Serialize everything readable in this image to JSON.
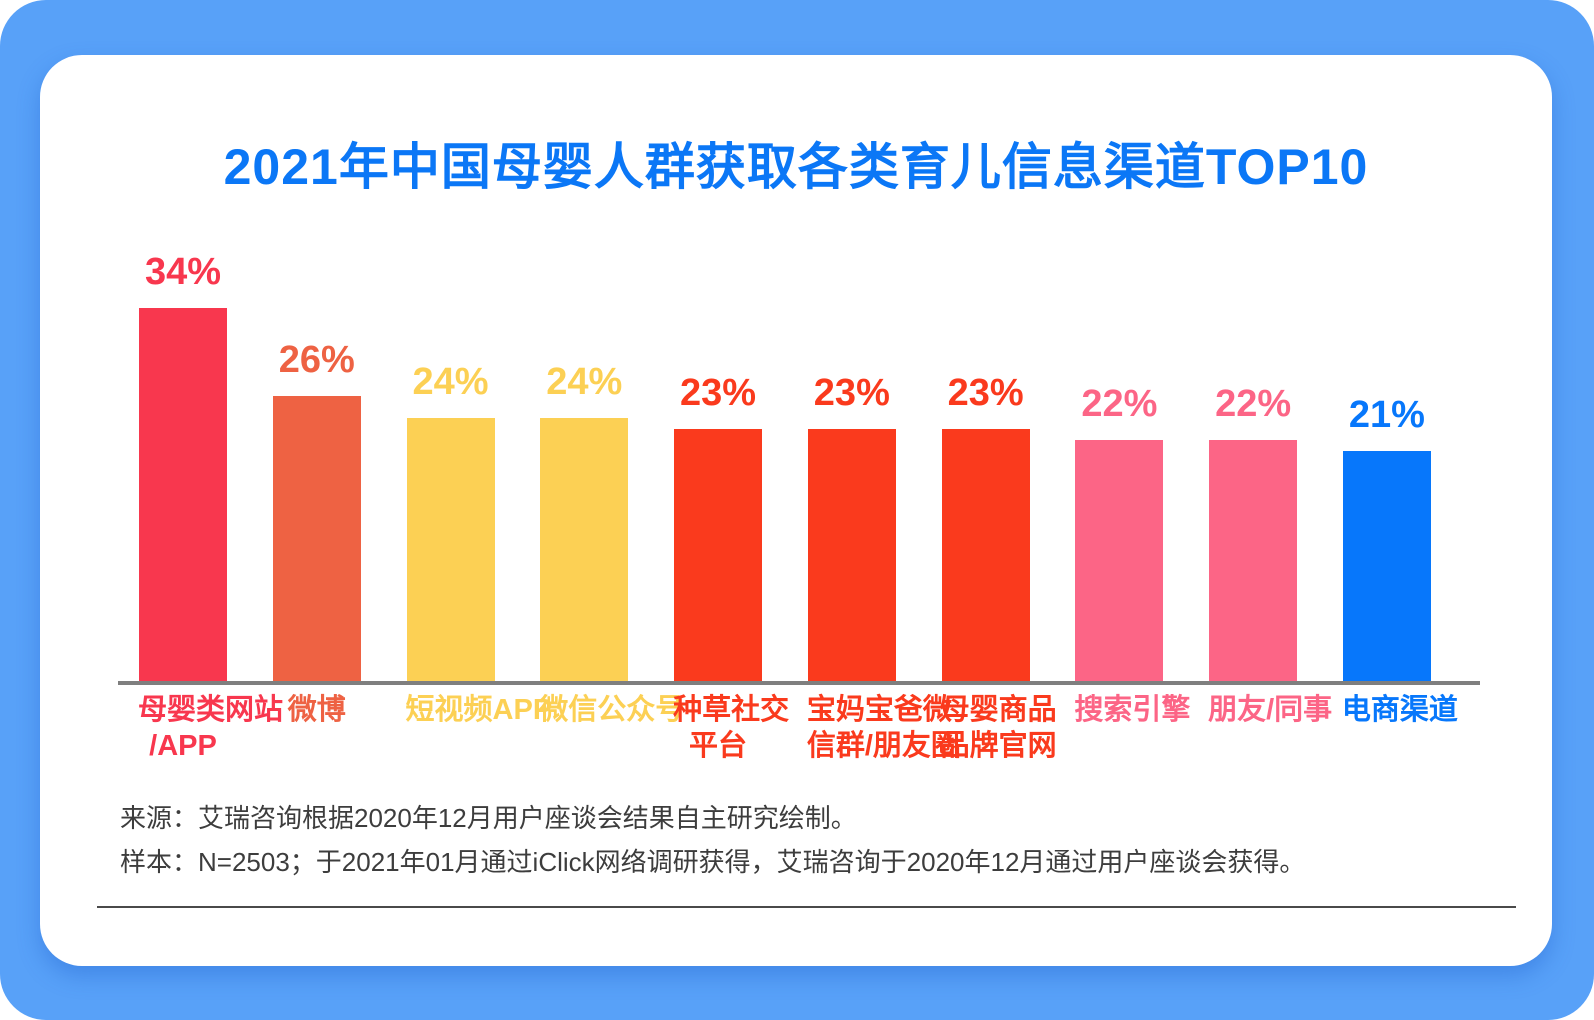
{
  "frame": {
    "background_color": "#58A1F8",
    "card_color": "#ffffff"
  },
  "title": {
    "text": "2021年中国母婴人群获取各类育儿信息渠道TOP10",
    "color": "#0B77F6"
  },
  "chart_data": {
    "type": "bar",
    "title": "2021年中国母婴人群获取各类育儿信息渠道TOP10",
    "unit": "%",
    "ylim": [
      0,
      40
    ],
    "grid": false,
    "legend": "none",
    "categories": [
      "母婴类网站/APP",
      "微博",
      "短视频APP",
      "微信公众号",
      "种草社交平台",
      "宝妈宝爸微信群/朋友圈",
      "母婴商品品牌官网",
      "搜索引擎",
      "朋友/同事",
      "电商渠道"
    ],
    "values": [
      34,
      26,
      24,
      24,
      23,
      23,
      23,
      22,
      22,
      21
    ],
    "bars": [
      {
        "category": "母婴类网站/APP",
        "label_display": "母婴类网站\n/APP",
        "value": 34,
        "value_label": "34%",
        "color": "#F8374E"
      },
      {
        "category": "微博",
        "label_display": "微博",
        "value": 26,
        "value_label": "26%",
        "color": "#EE6243"
      },
      {
        "category": "短视频APP",
        "label_display": "短视频APP",
        "value": 24,
        "value_label": "24%",
        "color": "#FCD054"
      },
      {
        "category": "微信公众号",
        "label_display": "微信公众号",
        "value": 24,
        "value_label": "24%",
        "color": "#FCD054"
      },
      {
        "category": "种草社交平台",
        "label_display": "种草社交\n平台",
        "value": 23,
        "value_label": "23%",
        "color": "#FA3A1D"
      },
      {
        "category": "宝妈宝爸微信群/朋友圈",
        "label_display": "宝妈宝爸微\n信群/朋友圈",
        "value": 23,
        "value_label": "23%",
        "color": "#FA3A1D"
      },
      {
        "category": "母婴商品品牌官网",
        "label_display": "母婴商品\n品牌官网",
        "value": 23,
        "value_label": "23%",
        "color": "#FA3A1D"
      },
      {
        "category": "搜索引擎",
        "label_display": "搜索引擎",
        "value": 22,
        "value_label": "22%",
        "color": "#FC6586"
      },
      {
        "category": "朋友/同事",
        "label_display": "朋友/同事",
        "value": 22,
        "value_label": "22%",
        "color": "#FC6586"
      },
      {
        "category": "电商渠道",
        "label_display": "电商渠道",
        "value": 21,
        "value_label": "21%",
        "color": "#0777FB"
      }
    ],
    "axis_color": "#7F7F7F"
  },
  "footer": {
    "source_line": "来源：艾瑞咨询根据2020年12月用户座谈会结果自主研究绘制。",
    "sample_line": "样本：N=2503；于2021年01月通过iClick网络调研获得，艾瑞咨询于2020年12月通过用户座谈会获得。"
  }
}
